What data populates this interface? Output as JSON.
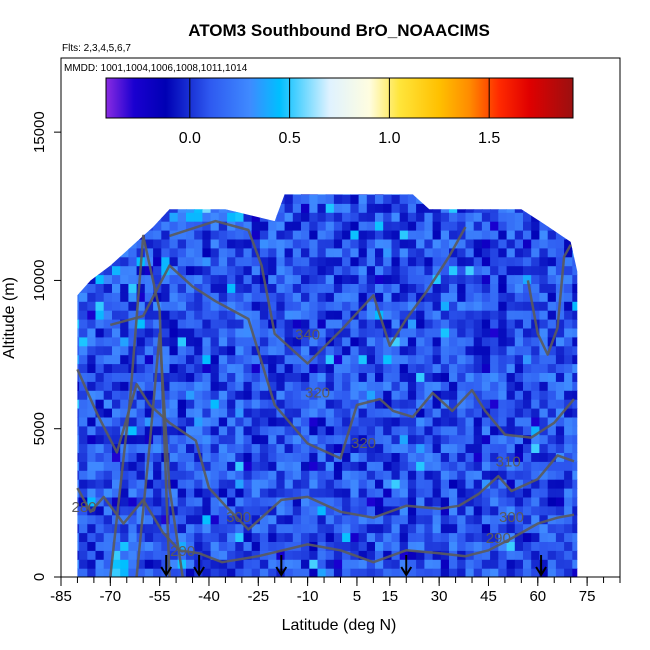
{
  "chart_data": {
    "type": "heatmap",
    "title": "ATOM3 Southbound BrO_NOAACIMS",
    "subtitle_flights": "Flts: 2,3,4,5,6,7",
    "subtitle_dates": "MMDD: 1001,1004,1006,1008,1011,1014",
    "xlabel": "Latitude (deg N)",
    "ylabel": "Altitude (m)",
    "xlim": [
      -85,
      85
    ],
    "ylim": [
      0,
      17500
    ],
    "x_ticks": [
      -85,
      -70,
      -55,
      -40,
      -25,
      -10,
      5,
      15,
      30,
      45,
      60,
      75
    ],
    "x_tick_labels": [
      "-85",
      "-70",
      "-55",
      "-40",
      "-25",
      "-10",
      "5",
      "15",
      "30",
      "45",
      "60",
      "75"
    ],
    "y_ticks": [
      0,
      5000,
      10000,
      15000
    ],
    "y_tick_labels": [
      "0",
      "5000",
      "10000",
      "15000"
    ],
    "colorbar": {
      "range": [
        -0.42,
        1.92
      ],
      "ticks": [
        0.0,
        0.5,
        1.0,
        1.5
      ],
      "tick_labels": [
        "0.0",
        "0.5",
        "1.0",
        "1.5"
      ],
      "stops": [
        {
          "value": -0.42,
          "color": "#8a2be2"
        },
        {
          "value": -0.28,
          "color": "#1a00d0"
        },
        {
          "value": -0.12,
          "color": "#0000b4"
        },
        {
          "value": 0.1,
          "color": "#2e59f0"
        },
        {
          "value": 0.3,
          "color": "#3f8aff"
        },
        {
          "value": 0.45,
          "color": "#00bfff"
        },
        {
          "value": 0.7,
          "color": "#dff2ff"
        },
        {
          "value": 0.9,
          "color": "#fffde0"
        },
        {
          "value": 1.05,
          "color": "#ffe53b"
        },
        {
          "value": 1.25,
          "color": "#ffc000"
        },
        {
          "value": 1.4,
          "color": "#ff8c00"
        },
        {
          "value": 1.55,
          "color": "#ff2a00"
        },
        {
          "value": 1.7,
          "color": "#e00000"
        },
        {
          "value": 1.92,
          "color": "#9b1010"
        }
      ]
    },
    "data_extent": {
      "altitude_top": [
        [
          -80,
          9500
        ],
        [
          -76,
          10000
        ],
        [
          -70,
          10500
        ],
        [
          -63,
          11200
        ],
        [
          -57,
          11800
        ],
        [
          -52,
          12400
        ],
        [
          -35,
          12400
        ],
        [
          -20,
          12000
        ],
        [
          -17,
          12900
        ],
        [
          5,
          12900
        ],
        [
          22,
          12900
        ],
        [
          27,
          12400
        ],
        [
          55,
          12400
        ],
        [
          62,
          11900
        ],
        [
          70,
          11300
        ],
        [
          72,
          10300
        ],
        [
          72,
          0
        ],
        [
          -80,
          0
        ]
      ],
      "typical_bro_pptv": 0.1
    },
    "contours": [
      {
        "label": "340",
        "points": [
          [
            -52,
            11500
          ],
          [
            -38,
            12000
          ],
          [
            -28,
            11700
          ],
          [
            -24,
            10500
          ],
          [
            -20,
            8200
          ],
          [
            -10,
            7200
          ],
          [
            0,
            8300
          ],
          [
            10,
            9500
          ],
          [
            15,
            7800
          ],
          [
            20,
            8700
          ],
          [
            26,
            9600
          ],
          [
            33,
            10800
          ],
          [
            38,
            11800
          ]
        ]
      },
      {
        "label": "320",
        "points": [
          [
            -70,
            8500
          ],
          [
            -60,
            8800
          ],
          [
            -52,
            10500
          ],
          [
            -45,
            9800
          ],
          [
            -38,
            9300
          ],
          [
            -28,
            8700
          ],
          [
            -20,
            5800
          ],
          [
            -10,
            4500
          ],
          [
            0,
            4000
          ],
          [
            5,
            5800
          ],
          [
            12,
            6000
          ],
          [
            16,
            5600
          ],
          [
            22,
            5400
          ],
          [
            28,
            6200
          ],
          [
            34,
            5600
          ],
          [
            40,
            6300
          ],
          [
            44,
            5600
          ],
          [
            50,
            4800
          ],
          [
            58,
            4700
          ],
          [
            65,
            5200
          ],
          [
            71,
            6000
          ]
        ]
      },
      {
        "label": "300",
        "points": [
          [
            -80,
            7000
          ],
          [
            -74,
            5500
          ],
          [
            -68,
            4200
          ],
          [
            -62,
            6500
          ],
          [
            -58,
            5800
          ],
          [
            -52,
            5200
          ],
          [
            -44,
            4600
          ],
          [
            -40,
            3000
          ],
          [
            -35,
            2400
          ],
          [
            -28,
            1600
          ],
          [
            -18,
            2600
          ],
          [
            -10,
            2700
          ],
          [
            0,
            2200
          ],
          [
            10,
            2000
          ],
          [
            20,
            2400
          ],
          [
            30,
            2300
          ],
          [
            36,
            2400
          ],
          [
            42,
            2800
          ],
          [
            48,
            3400
          ],
          [
            52,
            2900
          ],
          [
            60,
            3300
          ],
          [
            66,
            4100
          ],
          [
            71,
            3900
          ]
        ]
      },
      {
        "label": "290",
        "points": [
          [
            -80,
            3000
          ],
          [
            -76,
            2200
          ],
          [
            -72,
            2700
          ],
          [
            -66,
            1800
          ],
          [
            -60,
            2600
          ],
          [
            -54,
            1500
          ],
          [
            -49,
            900
          ],
          [
            -43,
            800
          ],
          [
            -36,
            500
          ],
          [
            -25,
            700
          ],
          [
            -10,
            1100
          ],
          [
            0,
            900
          ],
          [
            10,
            500
          ],
          [
            20,
            900
          ],
          [
            30,
            800
          ],
          [
            38,
            700
          ],
          [
            45,
            900
          ],
          [
            52,
            1300
          ],
          [
            60,
            1800
          ],
          [
            66,
            2000
          ],
          [
            71,
            2100
          ]
        ]
      },
      {
        "label": "",
        "points": [
          [
            -70,
            0
          ],
          [
            -64,
            6000
          ],
          [
            -60,
            11500
          ],
          [
            -55,
            9000
          ],
          [
            -52,
            0
          ]
        ]
      },
      {
        "label": "",
        "points": [
          [
            -62,
            0
          ],
          [
            -58,
            4500
          ],
          [
            -55,
            8200
          ],
          [
            -52,
            3000
          ],
          [
            -48,
            0
          ]
        ]
      },
      {
        "label": "",
        "points": [
          [
            57,
            10000
          ],
          [
            60,
            8200
          ],
          [
            63,
            7500
          ],
          [
            66,
            8400
          ],
          [
            68,
            10800
          ],
          [
            70,
            11200
          ]
        ]
      }
    ],
    "contour_labels": [
      {
        "text": "340",
        "x": -10,
        "y": 8000
      },
      {
        "text": "320",
        "x": -7,
        "y": 6050
      },
      {
        "text": "320",
        "x": 7,
        "y": 4350
      },
      {
        "text": "300",
        "x": -31,
        "y": 1850
      },
      {
        "text": "280",
        "x": -78,
        "y": 2200
      },
      {
        "text": "290",
        "x": -48,
        "y": 700
      },
      {
        "text": "300",
        "x": 52,
        "y": 1850
      },
      {
        "text": "290",
        "x": 48,
        "y": 1150
      },
      {
        "text": "310",
        "x": 51,
        "y": 3720
      }
    ],
    "arrows_latitude": [
      -53,
      -43,
      -18,
      20,
      61
    ]
  }
}
